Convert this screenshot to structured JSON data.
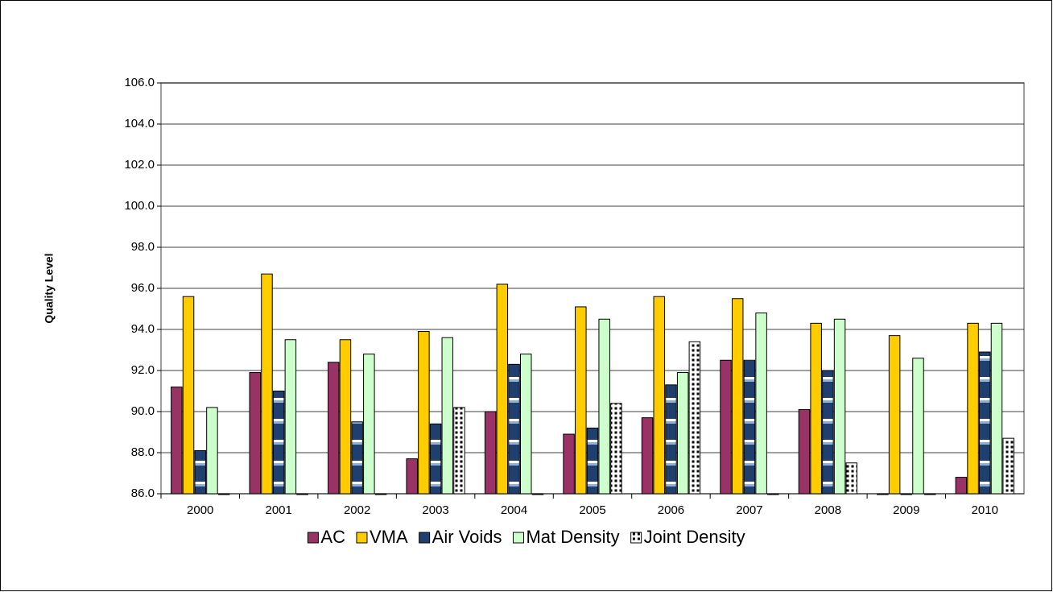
{
  "chart_data": {
    "type": "bar",
    "y_label": "Quality Level",
    "categories": [
      "2000",
      "2001",
      "2002",
      "2003",
      "2004",
      "2005",
      "2006",
      "2007",
      "2008",
      "2009",
      "2010"
    ],
    "series": [
      {
        "name": "AC",
        "color": "#993366",
        "values": [
          91.2,
          91.9,
          92.4,
          87.7,
          90.0,
          88.9,
          89.7,
          92.5,
          90.1,
          86.0,
          86.8
        ]
      },
      {
        "name": "VMA",
        "color": "#ffcc00",
        "values": [
          95.6,
          96.7,
          93.5,
          93.9,
          96.2,
          95.1,
          95.6,
          95.5,
          94.3,
          93.7,
          94.3
        ]
      },
      {
        "name": "Air Voids",
        "color": "#1f3f6e",
        "pattern": "bands",
        "values": [
          88.1,
          91.0,
          89.5,
          89.4,
          92.3,
          89.2,
          91.3,
          92.5,
          92.0,
          86.0,
          92.9
        ]
      },
      {
        "name": "Mat Density",
        "color": "#ccffcc",
        "values": [
          90.2,
          93.5,
          92.8,
          93.6,
          92.8,
          94.5,
          91.9,
          94.8,
          94.5,
          92.6,
          94.3
        ]
      },
      {
        "name": "Joint Density",
        "color": "#000000",
        "pattern": "dots",
        "values": [
          86.0,
          86.0,
          86.0,
          90.2,
          86.0,
          90.4,
          93.4,
          86.0,
          87.5,
          86.0,
          88.7
        ]
      }
    ],
    "ylim": [
      86,
      106
    ],
    "yticks": [
      {
        "value": 86,
        "label": "86.0"
      },
      {
        "value": 88,
        "label": "88.0"
      },
      {
        "value": 90,
        "label": "90.0"
      },
      {
        "value": 92,
        "label": "92.0"
      },
      {
        "value": 94,
        "label": "94.0"
      },
      {
        "value": 96,
        "label": "96.0"
      },
      {
        "value": 98,
        "label": "98.0"
      },
      {
        "value": 100,
        "label": "100.0"
      },
      {
        "value": 102,
        "label": "102.0"
      },
      {
        "value": 104,
        "label": "104.0"
      },
      {
        "value": 106,
        "label": "106.0"
      }
    ],
    "grid": true,
    "legend": "bottom"
  }
}
